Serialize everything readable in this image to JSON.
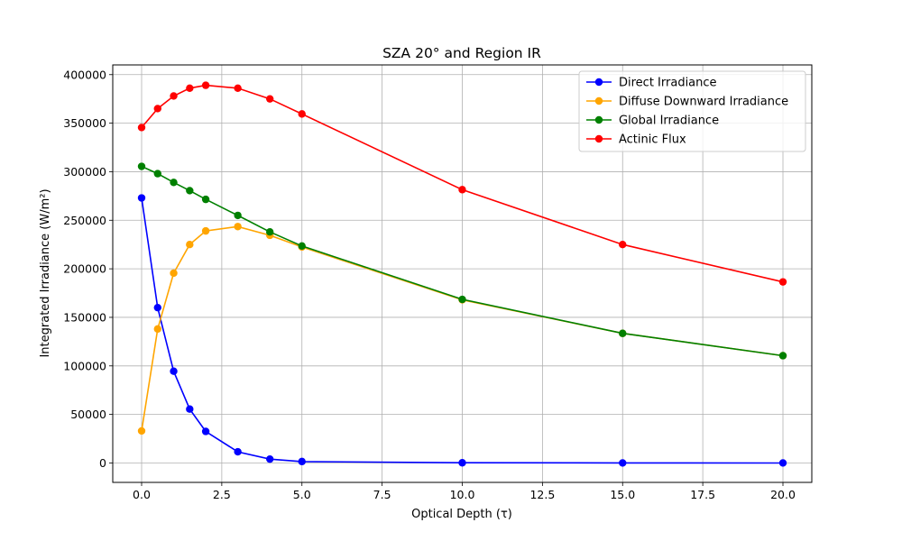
{
  "chart_data": {
    "type": "line",
    "title": "SZA 20° and Region IR",
    "xlabel": "Optical Depth (τ)",
    "ylabel": "Integrated Irradiance (W/m²)",
    "xlim": [
      -0.9,
      20.9
    ],
    "ylim": [
      -20000,
      410000
    ],
    "xticks": [
      0.0,
      2.5,
      5.0,
      7.5,
      10.0,
      12.5,
      15.0,
      17.5,
      20.0
    ],
    "xtick_labels": [
      "0.0",
      "2.5",
      "5.0",
      "7.5",
      "10.0",
      "12.5",
      "15.0",
      "17.5",
      "20.0"
    ],
    "yticks": [
      0,
      50000,
      100000,
      150000,
      200000,
      250000,
      300000,
      350000,
      400000
    ],
    "ytick_labels": [
      "0",
      "50000",
      "100000",
      "150000",
      "200000",
      "250000",
      "300000",
      "350000",
      "400000"
    ],
    "grid": true,
    "legend_position": "top-right",
    "x": [
      0,
      0.5,
      1,
      1.5,
      2,
      3,
      4,
      5,
      10,
      15,
      20
    ],
    "series": [
      {
        "name": "Direct Irradiance",
        "color": "#0000ff",
        "values": [
          273000,
          160000,
          94500,
          55500,
          32500,
          11500,
          4000,
          1500,
          200,
          50,
          10
        ]
      },
      {
        "name": "Diffuse Downward Irradiance",
        "color": "#ffa500",
        "values": [
          33000,
          138000,
          195500,
          225000,
          239000,
          243500,
          234500,
          222500,
          168000,
          133500,
          110500
        ]
      },
      {
        "name": "Global Irradiance",
        "color": "#008000",
        "values": [
          305500,
          298000,
          289000,
          280500,
          271500,
          255000,
          238000,
          223500,
          168500,
          133500,
          110500
        ]
      },
      {
        "name": "Actinic Flux",
        "color": "#ff0000",
        "values": [
          345500,
          365000,
          378000,
          386000,
          389000,
          386000,
          375000,
          359500,
          281500,
          225000,
          186500
        ]
      }
    ]
  }
}
